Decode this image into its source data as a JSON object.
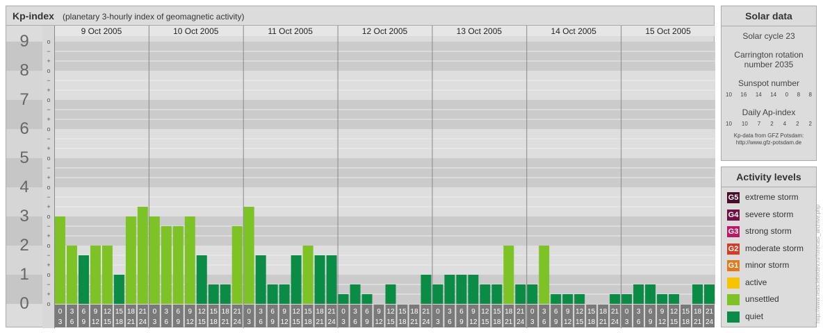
{
  "header": {
    "title": "Kp-index",
    "subtitle": "(planetary 3-hourly index of geomagnetic activity)"
  },
  "chart_data": {
    "type": "bar",
    "ylim": [
      0,
      9
    ],
    "y_tick_labels": [
      "0",
      "1",
      "2",
      "3",
      "4",
      "5",
      "6",
      "7",
      "8",
      "9"
    ],
    "minor_tick_labels": [
      "o",
      "+",
      "−"
    ],
    "days": [
      "9 Oct 2005",
      "10 Oct 2005",
      "11 Oct 2005",
      "12 Oct 2005",
      "13 Oct 2005",
      "14 Oct 2005",
      "15 Oct 2005"
    ],
    "interval_start": [
      "0",
      "3",
      "6",
      "9",
      "12",
      "15",
      "18",
      "21"
    ],
    "interval_end": [
      "3",
      "6",
      "9",
      "12",
      "15",
      "18",
      "21",
      "24"
    ],
    "values": [
      3,
      2,
      1.667,
      2,
      2,
      1,
      3,
      3.333,
      3,
      2.667,
      2.667,
      3,
      1.667,
      0.667,
      0.667,
      2.667,
      3.333,
      1.667,
      0.667,
      0.667,
      1.667,
      2,
      1.667,
      1.667,
      0.333,
      0.667,
      0.333,
      0,
      0.667,
      0,
      0,
      1,
      0.667,
      1,
      1,
      1,
      0.667,
      0.667,
      2,
      0.667,
      0.667,
      2,
      0.333,
      0.333,
      0.333,
      0,
      0,
      0.333,
      0.333,
      0.667,
      0.667,
      0.333,
      0.333,
      0,
      0.667,
      0.667
    ],
    "colors": {
      "unsettled": "#7dc326",
      "quiet": "#0a8c46"
    }
  },
  "solar": {
    "title": "Solar data",
    "cycle": "Solar cycle 23",
    "carrington_1": "Carrington rotation",
    "carrington_2": "number 2035",
    "sunspot_label": "Sunspot number",
    "sunspot_values": [
      "10",
      "16",
      "14",
      "14",
      "0",
      "8",
      "8"
    ],
    "ap_label": "Daily Ap-index",
    "ap_values": [
      "10",
      "10",
      "7",
      "2",
      "4",
      "2",
      "2"
    ],
    "source_1": "Kp-data from GFZ Potsdam:",
    "source_2": "http://www.gfz-potsdam.de"
  },
  "activity": {
    "title": "Activity levels",
    "levels": [
      {
        "code": "G5",
        "label": "extreme storm",
        "color": "#4a0a2a"
      },
      {
        "code": "G4",
        "label": "severe storm",
        "color": "#6e0f46"
      },
      {
        "code": "G3",
        "label": "strong storm",
        "color": "#b81a66"
      },
      {
        "code": "G2",
        "label": "moderate storm",
        "color": "#d23c24"
      },
      {
        "code": "G1",
        "label": "minor storm",
        "color": "#e07a1a"
      },
      {
        "code": "",
        "label": "active",
        "color": "#f6c400"
      },
      {
        "code": "",
        "label": "unsettled",
        "color": "#7dc326"
      },
      {
        "code": "",
        "label": "quiet",
        "color": "#0a8c46"
      }
    ]
  },
  "credit": "http://www.tesis.lebedev.ru/forecast_archive.php"
}
